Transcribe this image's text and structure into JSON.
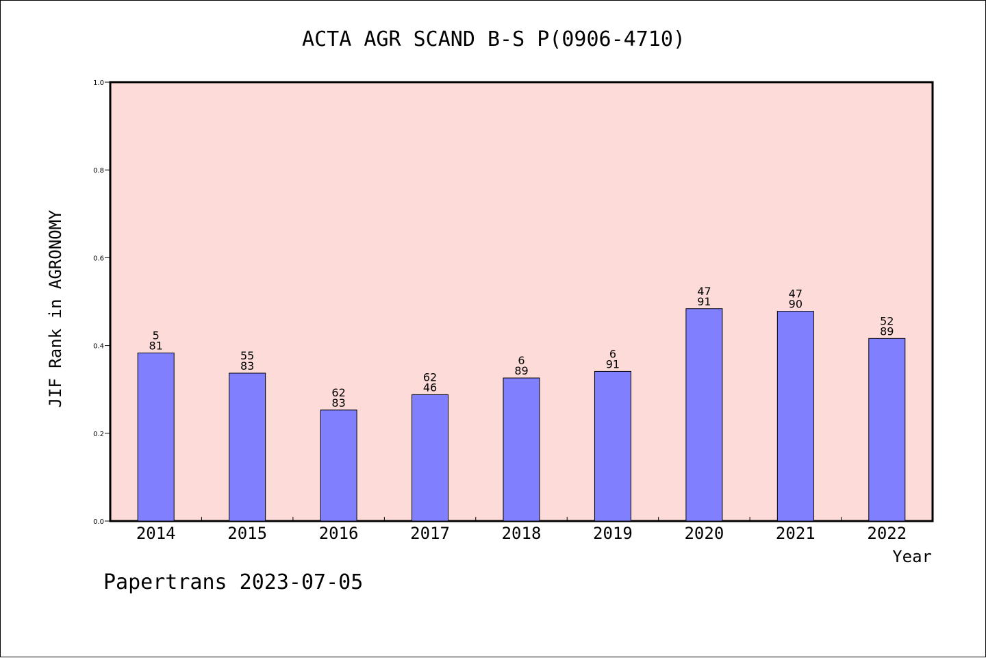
{
  "chart_data": {
    "type": "bar",
    "title": "ACTA AGR SCAND B-S P(0906-4710)",
    "xlabel": "Year",
    "ylabel": "JIF Rank in AGRONOMY",
    "ylim": [
      0,
      1.0
    ],
    "yticks": [
      "0.0",
      "0.2",
      "0.4",
      "0.6",
      "0.8",
      "1.0"
    ],
    "categories": [
      "2014",
      "2015",
      "2016",
      "2017",
      "2018",
      "2019",
      "2020",
      "2021",
      "2022"
    ],
    "values": [
      0.383,
      0.337,
      0.253,
      0.288,
      0.326,
      0.341,
      0.484,
      0.478,
      0.416
    ],
    "labels_top": [
      "5",
      "55",
      "62",
      "62",
      "6",
      "6",
      "47",
      "47",
      "52"
    ],
    "labels_bottom": [
      "81",
      "83",
      "83",
      "46",
      "89",
      "91",
      "91",
      "90",
      "89"
    ],
    "colors": {
      "plot_bg": "#fddbd8",
      "bar": "#8080ff"
    },
    "grid": false
  },
  "footer": {
    "text": "Papertrans 2023-07-05"
  }
}
